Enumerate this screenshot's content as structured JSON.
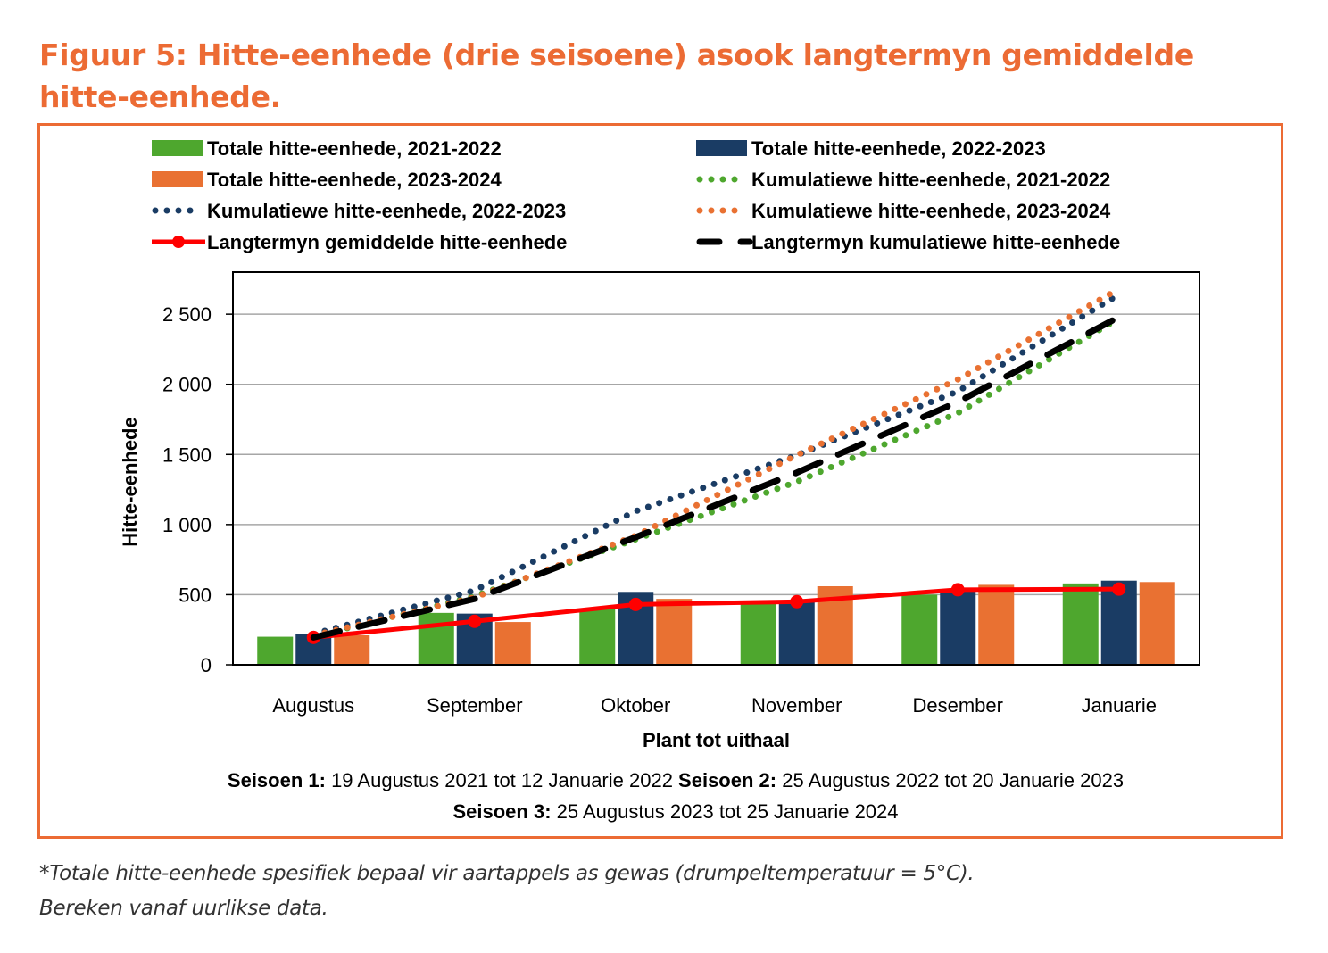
{
  "figure": {
    "title": "Figuur 5: Hitte-eenhede (drie seisoene) asook langtermyn gemiddelde hitte-eenhede.",
    "caption_line1": "*Totale hitte-eenhede spesifiek bepaal vir aartappels as gewas (drumpeltemperatuur = 5°C).",
    "caption_line2": "Bereken vanaf uurlikse data.",
    "frame_color": "#ec6b34"
  },
  "chart_data": {
    "type": "bar",
    "title": "",
    "xlabel": "Plant tot uithaal",
    "ylabel": "Hitte-eenhede",
    "ylim": [
      0,
      2800
    ],
    "yticks": [
      0,
      500,
      1000,
      1500,
      2000,
      2500
    ],
    "ytick_labels": [
      "0",
      "500",
      "1 000",
      "1 500",
      "2 000",
      "2 500"
    ],
    "grid": "horizontal",
    "legend_position": "top",
    "categories": [
      "Augustus",
      "September",
      "Oktober",
      "November",
      "Desember",
      "Januarie"
    ],
    "bar_series": [
      {
        "name": "Totale hitte-eenhede, 2021-2022",
        "color": "#4ea72e",
        "values": [
          200,
          370,
          400,
          435,
          500,
          580
        ]
      },
      {
        "name": "Totale hitte-eenhede, 2022-2023",
        "color": "#1a3c64",
        "values": [
          220,
          365,
          520,
          460,
          540,
          600
        ]
      },
      {
        "name": "Totale hitte-eenhede, 2023-2024",
        "color": "#e97132",
        "values": [
          210,
          305,
          470,
          560,
          570,
          590
        ]
      }
    ],
    "line_series": [
      {
        "name": "Kumulatiewe hitte-eenhede, 2021-2022",
        "color": "#4ea72e",
        "style": "dotted",
        "values": [
          200,
          490,
          895,
          1305,
          1795,
          2470
        ]
      },
      {
        "name": "Kumulatiewe hitte-eenhede, 2022-2023",
        "color": "#1a3c64",
        "style": "dotted",
        "values": [
          220,
          530,
          1095,
          1495,
          1950,
          2640
        ]
      },
      {
        "name": "Kumulatiewe hitte-eenhede, 2023-2024",
        "color": "#e97132",
        "style": "dotted",
        "values": [
          210,
          480,
          920,
          1495,
          2035,
          2680
        ]
      },
      {
        "name": "Langtermyn gemiddelde hitte-eenhede",
        "color": "#ff0000",
        "style": "solid-marker",
        "values": [
          195,
          310,
          430,
          450,
          535,
          540
        ]
      },
      {
        "name": "Langtermyn kumulatiewe hitte-eenhede",
        "color": "#000000",
        "style": "dashed",
        "values": [
          195,
          470,
          910,
          1370,
          1875,
          2480
        ]
      }
    ],
    "legend": [
      {
        "label": "Totale hitte-eenhede, 2021-2022",
        "kind": "bar",
        "color": "#4ea72e"
      },
      {
        "label": "Totale hitte-eenhede, 2022-2023",
        "kind": "bar",
        "color": "#1a3c64"
      },
      {
        "label": "Totale hitte-eenhede, 2023-2024",
        "kind": "bar",
        "color": "#e97132"
      },
      {
        "label": "Kumulatiewe hitte-eenhede, 2021-2022",
        "kind": "dotted",
        "color": "#4ea72e"
      },
      {
        "label": "Kumulatiewe hitte-eenhede, 2022-2023",
        "kind": "dotted",
        "color": "#1a3c64"
      },
      {
        "label": "Kumulatiewe hitte-eenhede, 2023-2024",
        "kind": "dotted",
        "color": "#e97132"
      },
      {
        "label": "Langtermyn gemiddelde hitte-eenhede",
        "kind": "solid-marker",
        "color": "#ff0000"
      },
      {
        "label": "Langtermyn kumulatiewe hitte-eenhede",
        "kind": "dashed",
        "color": "#000000"
      }
    ],
    "notes": [
      {
        "bold": "Seisoen 1:",
        "text": " 19 Augustus 2021 tot 12 Januarie 2022"
      },
      {
        "bold": "Seisoen 2:",
        "text": " 25 Augustus 2022 tot 20 Januarie 2023"
      },
      {
        "bold": "Seisoen 3:",
        "text": " 25 Augustus 2023 tot 25 Januarie 2024"
      }
    ]
  }
}
